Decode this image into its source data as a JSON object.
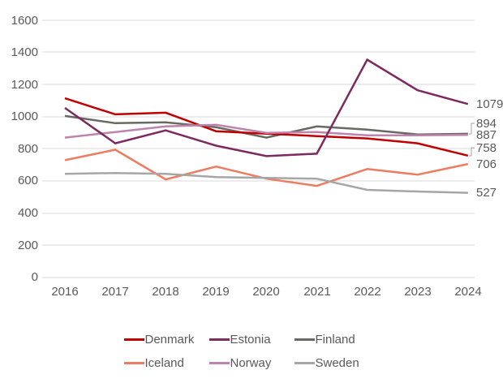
{
  "chart_data": {
    "type": "line",
    "title": "",
    "xlabel": "",
    "ylabel": "",
    "x": [
      "2016",
      "2017",
      "2018",
      "2019",
      "2020",
      "2021",
      "2022",
      "2023",
      "2024"
    ],
    "series": [
      {
        "name": "Denmark",
        "color": "#c00000",
        "values": [
          1115,
          1015,
          1025,
          910,
          895,
          880,
          865,
          835,
          758
        ],
        "end_label": "758"
      },
      {
        "name": "Estonia",
        "color": "#7d2a5e",
        "values": [
          1055,
          835,
          915,
          820,
          755,
          770,
          1355,
          1165,
          1079
        ],
        "end_label": "1079"
      },
      {
        "name": "Finland",
        "color": "#696963",
        "values": [
          1005,
          960,
          965,
          935,
          870,
          940,
          920,
          890,
          894
        ],
        "end_label": "894"
      },
      {
        "name": "Iceland",
        "color": "#ec7d60",
        "values": [
          730,
          795,
          610,
          690,
          615,
          570,
          675,
          640,
          706
        ],
        "end_label": "706"
      },
      {
        "name": "Norway",
        "color": "#be84ae",
        "values": [
          870,
          905,
          940,
          950,
          900,
          905,
          885,
          885,
          887
        ],
        "end_label": "887"
      },
      {
        "name": "Sweden",
        "color": "#a6a6a6",
        "values": [
          645,
          650,
          645,
          625,
          620,
          615,
          545,
          535,
          527
        ],
        "end_label": "527"
      }
    ],
    "yticks": [
      "0",
      "200",
      "400",
      "600",
      "800",
      "1000",
      "1200",
      "1400",
      "1600"
    ],
    "ylim": [
      0,
      1600
    ],
    "grid": "horizontal",
    "legend_position": "bottom",
    "text_color": "#595959",
    "gridline_color": "#d9d9d9"
  }
}
